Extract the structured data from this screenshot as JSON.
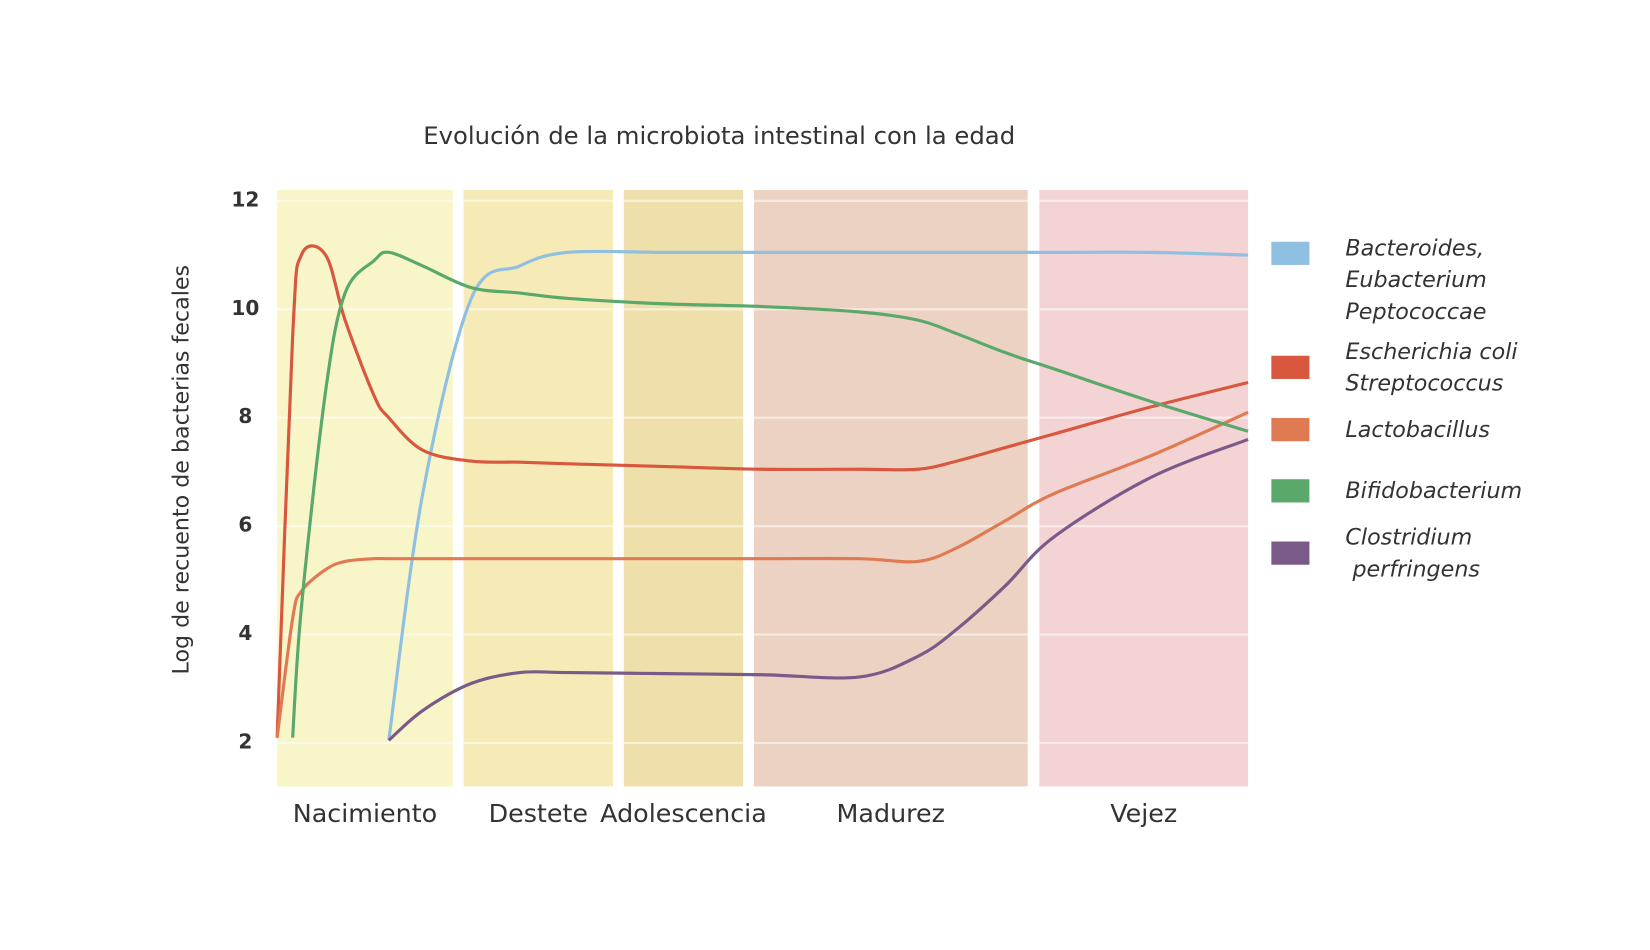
{
  "chart_data": {
    "type": "line",
    "title": "Evolución de la microbiota intestinal con la edad",
    "y_label": "Log de recuento de bacterias fecales",
    "xlim": [
      0,
      100
    ],
    "ylim": [
      1.2,
      12.2
    ],
    "yticks": [
      2,
      4,
      6,
      8,
      10,
      12
    ],
    "grid": true,
    "bands": [
      {
        "label": "Nacimiento",
        "from": 0,
        "to": 18.1,
        "color": "#f8f6c9"
      },
      {
        "label": "Destete",
        "from": 19.2,
        "to": 34.6,
        "color": "#f6eab7"
      },
      {
        "label": "Adolescencia",
        "from": 35.7,
        "to": 48.0,
        "color": "#efdfaa"
      },
      {
        "label": "Madurez",
        "from": 49.1,
        "to": 77.3,
        "color": "#ecd2c2"
      },
      {
        "label": "Vejez",
        "from": 78.5,
        "to": 100,
        "color": "#f3d3d4"
      }
    ],
    "x": [
      0,
      1.6,
      2.5,
      5,
      7,
      10,
      11.5,
      15,
      20,
      25,
      30,
      40,
      50,
      60,
      66,
      70,
      75,
      80,
      90,
      100
    ],
    "series": [
      {
        "name": "Bacteroides,\nEubacterium\nPeptococcae",
        "color": "#8fc0e2",
        "values": [
          null,
          null,
          null,
          null,
          null,
          null,
          2.05,
          6.6,
          10.2,
          10.8,
          11.05,
          11.05,
          11.05,
          11.05,
          11.05,
          11.05,
          11.05,
          11.05,
          11.05,
          11.0
        ]
      },
      {
        "name": "Escherichia coli\nStreptococcus",
        "color": "#d9573e",
        "values": [
          2.1,
          9.5,
          11.0,
          11.0,
          9.8,
          8.4,
          8.0,
          7.4,
          7.2,
          7.18,
          7.15,
          7.1,
          7.05,
          7.05,
          7.05,
          7.2,
          7.45,
          7.7,
          8.2,
          8.65
        ]
      },
      {
        "name": "Lactobacillus",
        "color": "#e07a52",
        "values": [
          2.1,
          4.3,
          4.8,
          5.2,
          5.35,
          5.4,
          5.4,
          5.4,
          5.4,
          5.4,
          5.4,
          5.4,
          5.4,
          5.4,
          5.35,
          5.6,
          6.1,
          6.6,
          7.3,
          8.1
        ]
      },
      {
        "name": "Bifidobacterium",
        "color": "#5aa86a",
        "values": [
          null,
          2.1,
          4.5,
          8.5,
          10.3,
          10.9,
          11.05,
          10.8,
          10.4,
          10.3,
          10.2,
          10.1,
          10.05,
          9.95,
          9.8,
          9.55,
          9.2,
          8.9,
          8.3,
          7.75
        ]
      },
      {
        "name": "Clostridium\n perfringens",
        "color": "#7a5a88",
        "values": [
          null,
          null,
          null,
          null,
          null,
          null,
          2.05,
          2.6,
          3.1,
          3.3,
          3.3,
          3.28,
          3.26,
          3.22,
          3.6,
          4.1,
          4.9,
          5.8,
          6.9,
          7.6
        ]
      }
    ]
  }
}
